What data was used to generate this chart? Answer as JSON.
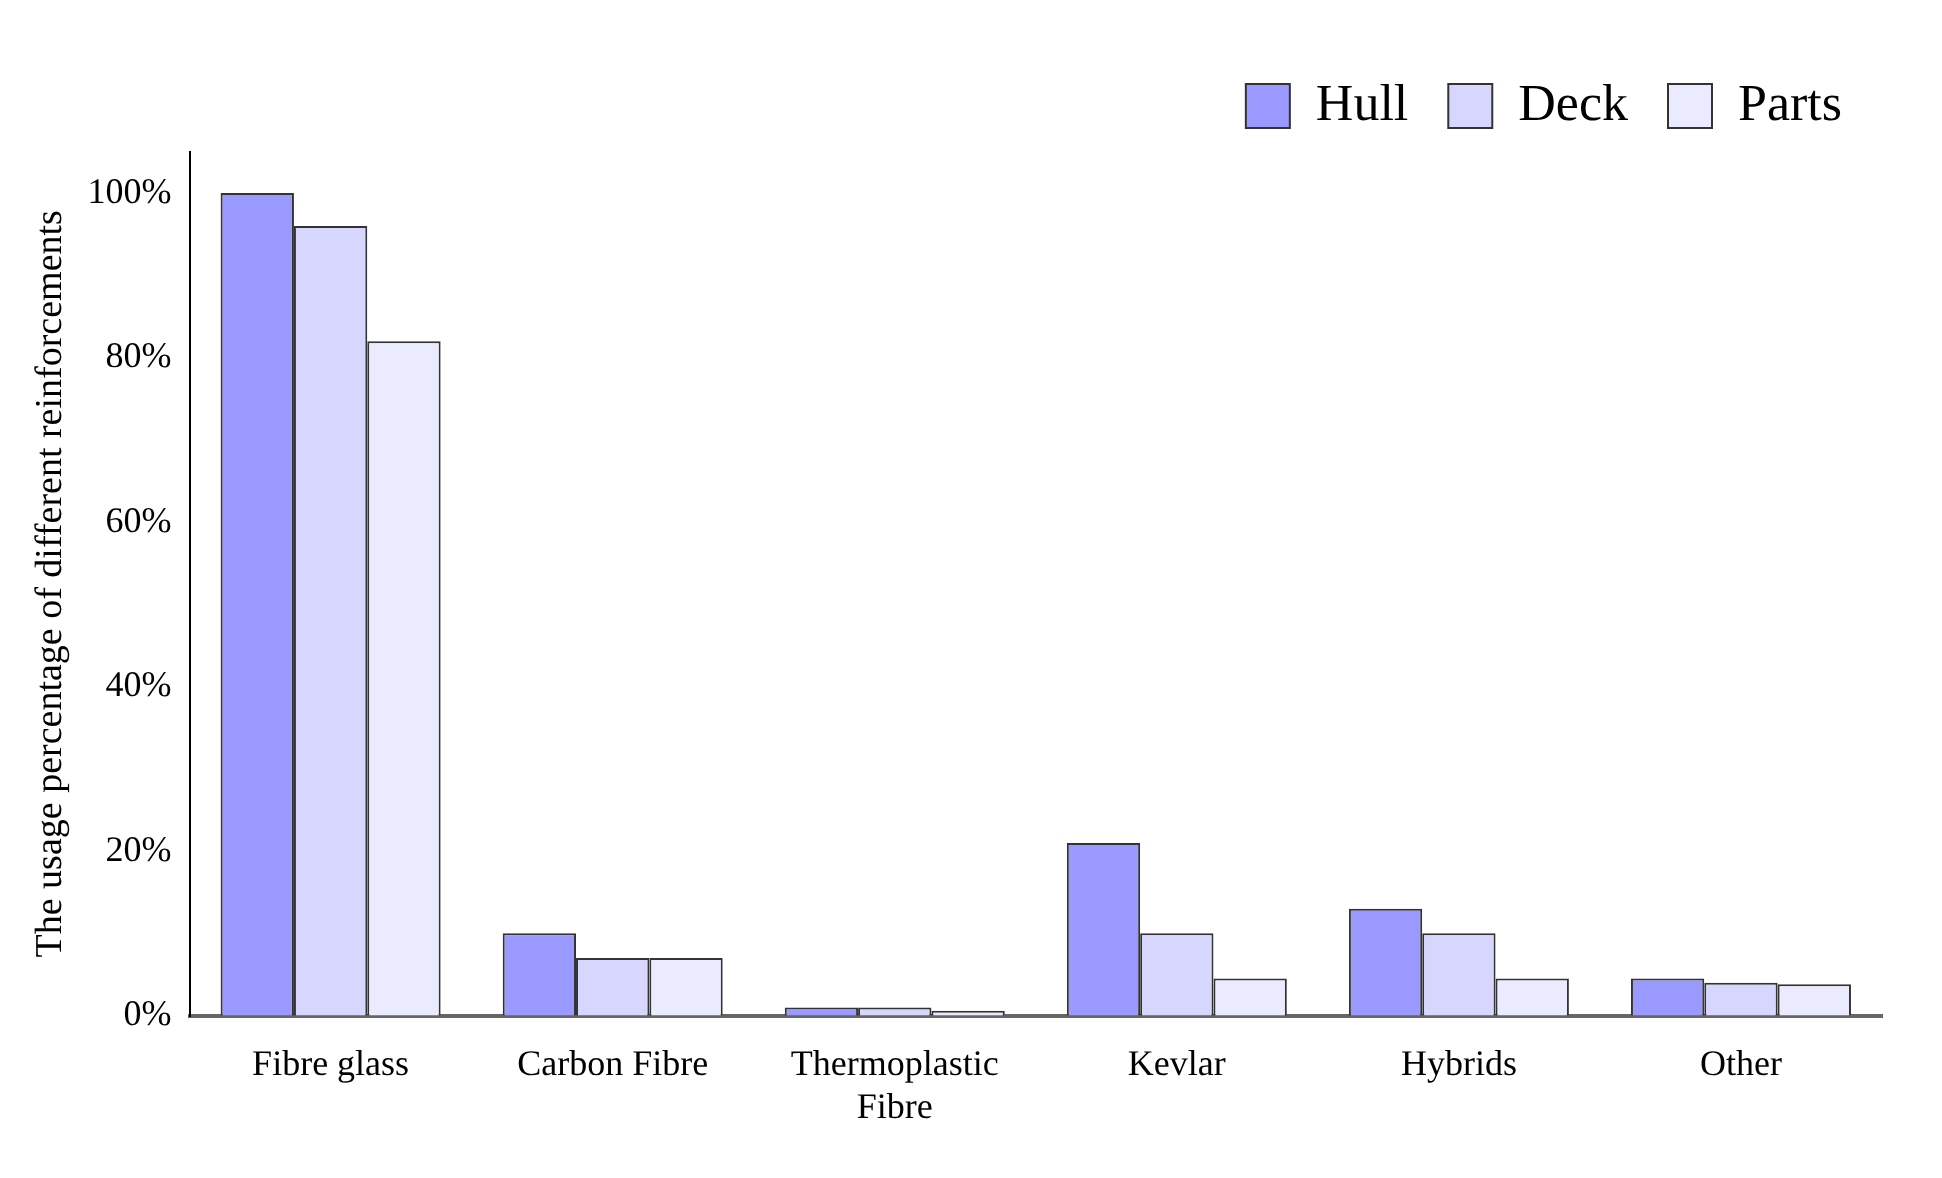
{
  "chart_data": {
    "type": "bar",
    "ylabel": "The usage percentage of different reinforcements",
    "categories": [
      "Fibre glass",
      "Carbon Fibre",
      "Thermoplastic Fibre",
      "Kevlar",
      "Hybrids",
      "Other"
    ],
    "series": [
      {
        "name": "Hull",
        "color": "#9999ff",
        "values": [
          100,
          10,
          1,
          21,
          13,
          4.5
        ]
      },
      {
        "name": "Deck",
        "color": "#d6d6ff",
        "values": [
          96,
          7,
          1,
          10,
          10,
          4
        ]
      },
      {
        "name": "Parts",
        "color": "#ebebff",
        "values": [
          82,
          7,
          0.6,
          4.5,
          4.5,
          3.8
        ]
      }
    ],
    "ylim": [
      0,
      105
    ],
    "yticks": [
      {
        "value": 0,
        "label": "0%"
      },
      {
        "value": 20,
        "label": "20%"
      },
      {
        "value": 40,
        "label": "40%"
      },
      {
        "value": 60,
        "label": "60%"
      },
      {
        "value": 80,
        "label": "80%"
      },
      {
        "value": 100,
        "label": "100%"
      }
    ],
    "grid": false,
    "legend": "top right"
  }
}
